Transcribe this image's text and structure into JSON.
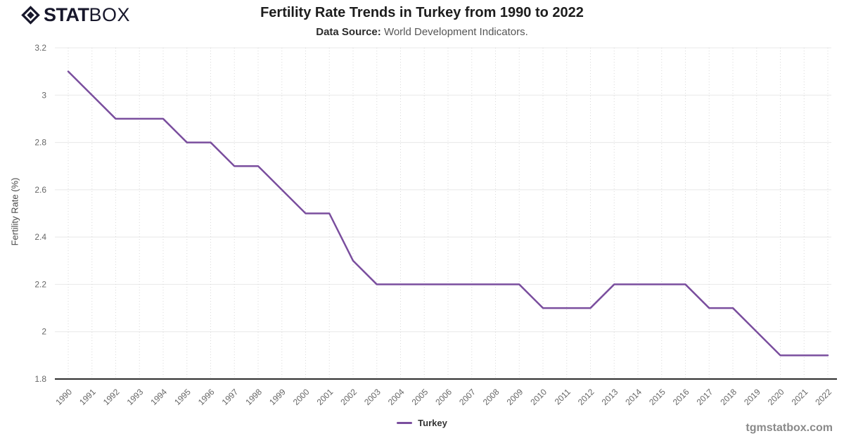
{
  "brand": {
    "stat": "STAT",
    "box": "BOX",
    "icon": "diamond-in-diamond"
  },
  "header": {
    "title": "Fertility Rate Trends in Turkey from 1990 to 2022",
    "source_label": "Data Source:",
    "source_text": "World Development Indicators."
  },
  "watermark": "tgmstatbox.com",
  "legend": [
    {
      "label": "Turkey",
      "color": "#7a4e9e"
    }
  ],
  "colors": {
    "line": "#7a4e9e",
    "grid_horizontal": "#e8e8e8",
    "grid_vertical_dotted": "#d8d8d8",
    "axis": "#2e2e2e",
    "tick_text": "#666666",
    "brand_dark": "#17172b"
  },
  "chart_data": {
    "type": "line",
    "title": "Fertility Rate Trends in Turkey from 1990 to 2022",
    "subtitle": "Data Source: World Development Indicators.",
    "x": [
      1990,
      1991,
      1992,
      1993,
      1994,
      1995,
      1996,
      1997,
      1998,
      1999,
      2000,
      2001,
      2002,
      2003,
      2004,
      2005,
      2006,
      2007,
      2008,
      2009,
      2010,
      2011,
      2012,
      2013,
      2014,
      2015,
      2016,
      2017,
      2018,
      2019,
      2020,
      2021,
      2022
    ],
    "series": [
      {
        "name": "Turkey",
        "color": "#7a4e9e",
        "values": [
          3.1,
          3.0,
          2.9,
          2.9,
          2.9,
          2.8,
          2.8,
          2.7,
          2.7,
          2.6,
          2.5,
          2.5,
          2.3,
          2.2,
          2.2,
          2.2,
          2.2,
          2.2,
          2.2,
          2.2,
          2.1,
          2.1,
          2.1,
          2.2,
          2.2,
          2.2,
          2.2,
          2.1,
          2.1,
          2.0,
          1.9,
          1.9,
          1.9
        ]
      }
    ],
    "xlabel": "",
    "ylabel": "Fertility Rate (%)",
    "ylim": [
      1.8,
      3.2
    ],
    "ytick_step": 0.2,
    "grid": {
      "horizontal": "solid",
      "vertical": "dotted"
    },
    "legend_position": "bottom-center",
    "x_tick_rotation": -45
  }
}
